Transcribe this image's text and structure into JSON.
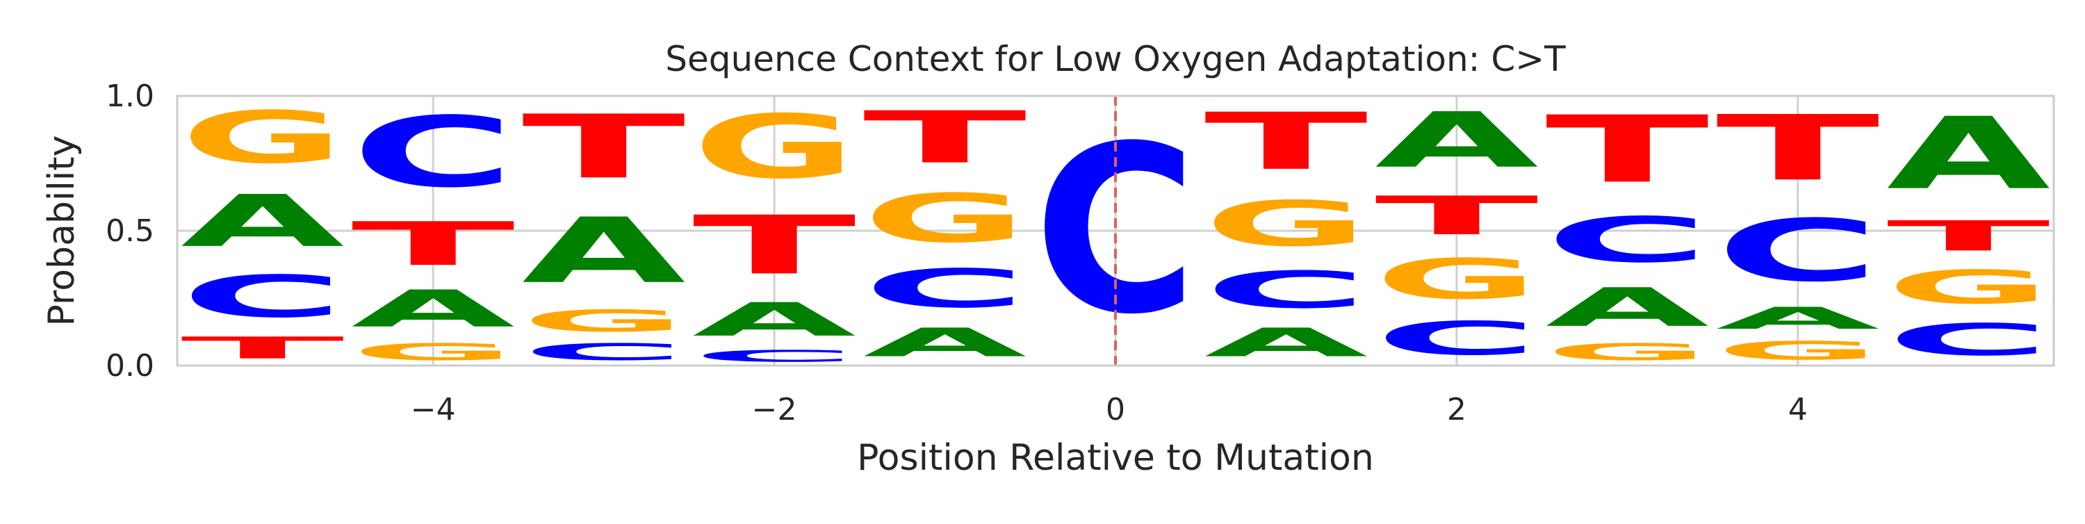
{
  "chart_data": {
    "type": "sequence-logo",
    "title": "Sequence Context for Low Oxygen Adaptation: C>T",
    "xlabel": "Position Relative to Mutation",
    "ylabel": "Probability",
    "xlim": [
      -5.5,
      5.5
    ],
    "ylim": [
      0,
      1
    ],
    "x_ticks": [
      -4,
      -2,
      0,
      2,
      4
    ],
    "x_tick_labels": [
      "−4",
      "−2",
      "0",
      "2",
      "4"
    ],
    "y_ticks": [
      0,
      0.5,
      1
    ],
    "y_tick_labels": [
      "0.0",
      "0.5",
      "1.0"
    ],
    "grid": true,
    "mutation_line": {
      "x": 0,
      "color": "#e06060",
      "style": "dashed"
    },
    "colors": {
      "A": "#008000",
      "C": "#0000ff",
      "G": "#ffa500",
      "T": "#ff0000"
    },
    "positions": [
      {
        "x": -5,
        "stack": [
          {
            "b": "T",
            "p": 0.13
          },
          {
            "b": "C",
            "p": 0.25
          },
          {
            "b": "A",
            "p": 0.31
          },
          {
            "b": "G",
            "p": 0.31
          }
        ]
      },
      {
        "x": -4,
        "stack": [
          {
            "b": "G",
            "p": 0.1
          },
          {
            "b": "A",
            "p": 0.22
          },
          {
            "b": "T",
            "p": 0.26
          },
          {
            "b": "C",
            "p": 0.42
          }
        ]
      },
      {
        "x": -3,
        "stack": [
          {
            "b": "C",
            "p": 0.1
          },
          {
            "b": "G",
            "p": 0.13
          },
          {
            "b": "A",
            "p": 0.39
          },
          {
            "b": "T",
            "p": 0.38
          }
        ]
      },
      {
        "x": -2,
        "stack": [
          {
            "b": "C",
            "p": 0.07
          },
          {
            "b": "A",
            "p": 0.2
          },
          {
            "b": "T",
            "p": 0.35
          },
          {
            "b": "G",
            "p": 0.38
          }
        ]
      },
      {
        "x": -1,
        "stack": [
          {
            "b": "A",
            "p": 0.17
          },
          {
            "b": "C",
            "p": 0.23
          },
          {
            "b": "G",
            "p": 0.29
          },
          {
            "b": "T",
            "p": 0.31
          }
        ]
      },
      {
        "x": 0,
        "stack": [
          {
            "b": "C",
            "p": 1.0
          }
        ]
      },
      {
        "x": 1,
        "stack": [
          {
            "b": "A",
            "p": 0.17
          },
          {
            "b": "C",
            "p": 0.22
          },
          {
            "b": "G",
            "p": 0.27
          },
          {
            "b": "T",
            "p": 0.34
          }
        ]
      },
      {
        "x": 2,
        "stack": [
          {
            "b": "C",
            "p": 0.2
          },
          {
            "b": "G",
            "p": 0.24
          },
          {
            "b": "T",
            "p": 0.23
          },
          {
            "b": "A",
            "p": 0.33
          }
        ]
      },
      {
        "x": 3,
        "stack": [
          {
            "b": "G",
            "p": 0.1
          },
          {
            "b": "A",
            "p": 0.23
          },
          {
            "b": "C",
            "p": 0.27
          },
          {
            "b": "T",
            "p": 0.4
          }
        ]
      },
      {
        "x": 4,
        "stack": [
          {
            "b": "G",
            "p": 0.11
          },
          {
            "b": "A",
            "p": 0.13
          },
          {
            "b": "C",
            "p": 0.37
          },
          {
            "b": "T",
            "p": 0.39
          }
        ]
      },
      {
        "x": 5,
        "stack": [
          {
            "b": "C",
            "p": 0.19
          },
          {
            "b": "G",
            "p": 0.2
          },
          {
            "b": "T",
            "p": 0.18
          },
          {
            "b": "A",
            "p": 0.43
          }
        ]
      }
    ]
  }
}
